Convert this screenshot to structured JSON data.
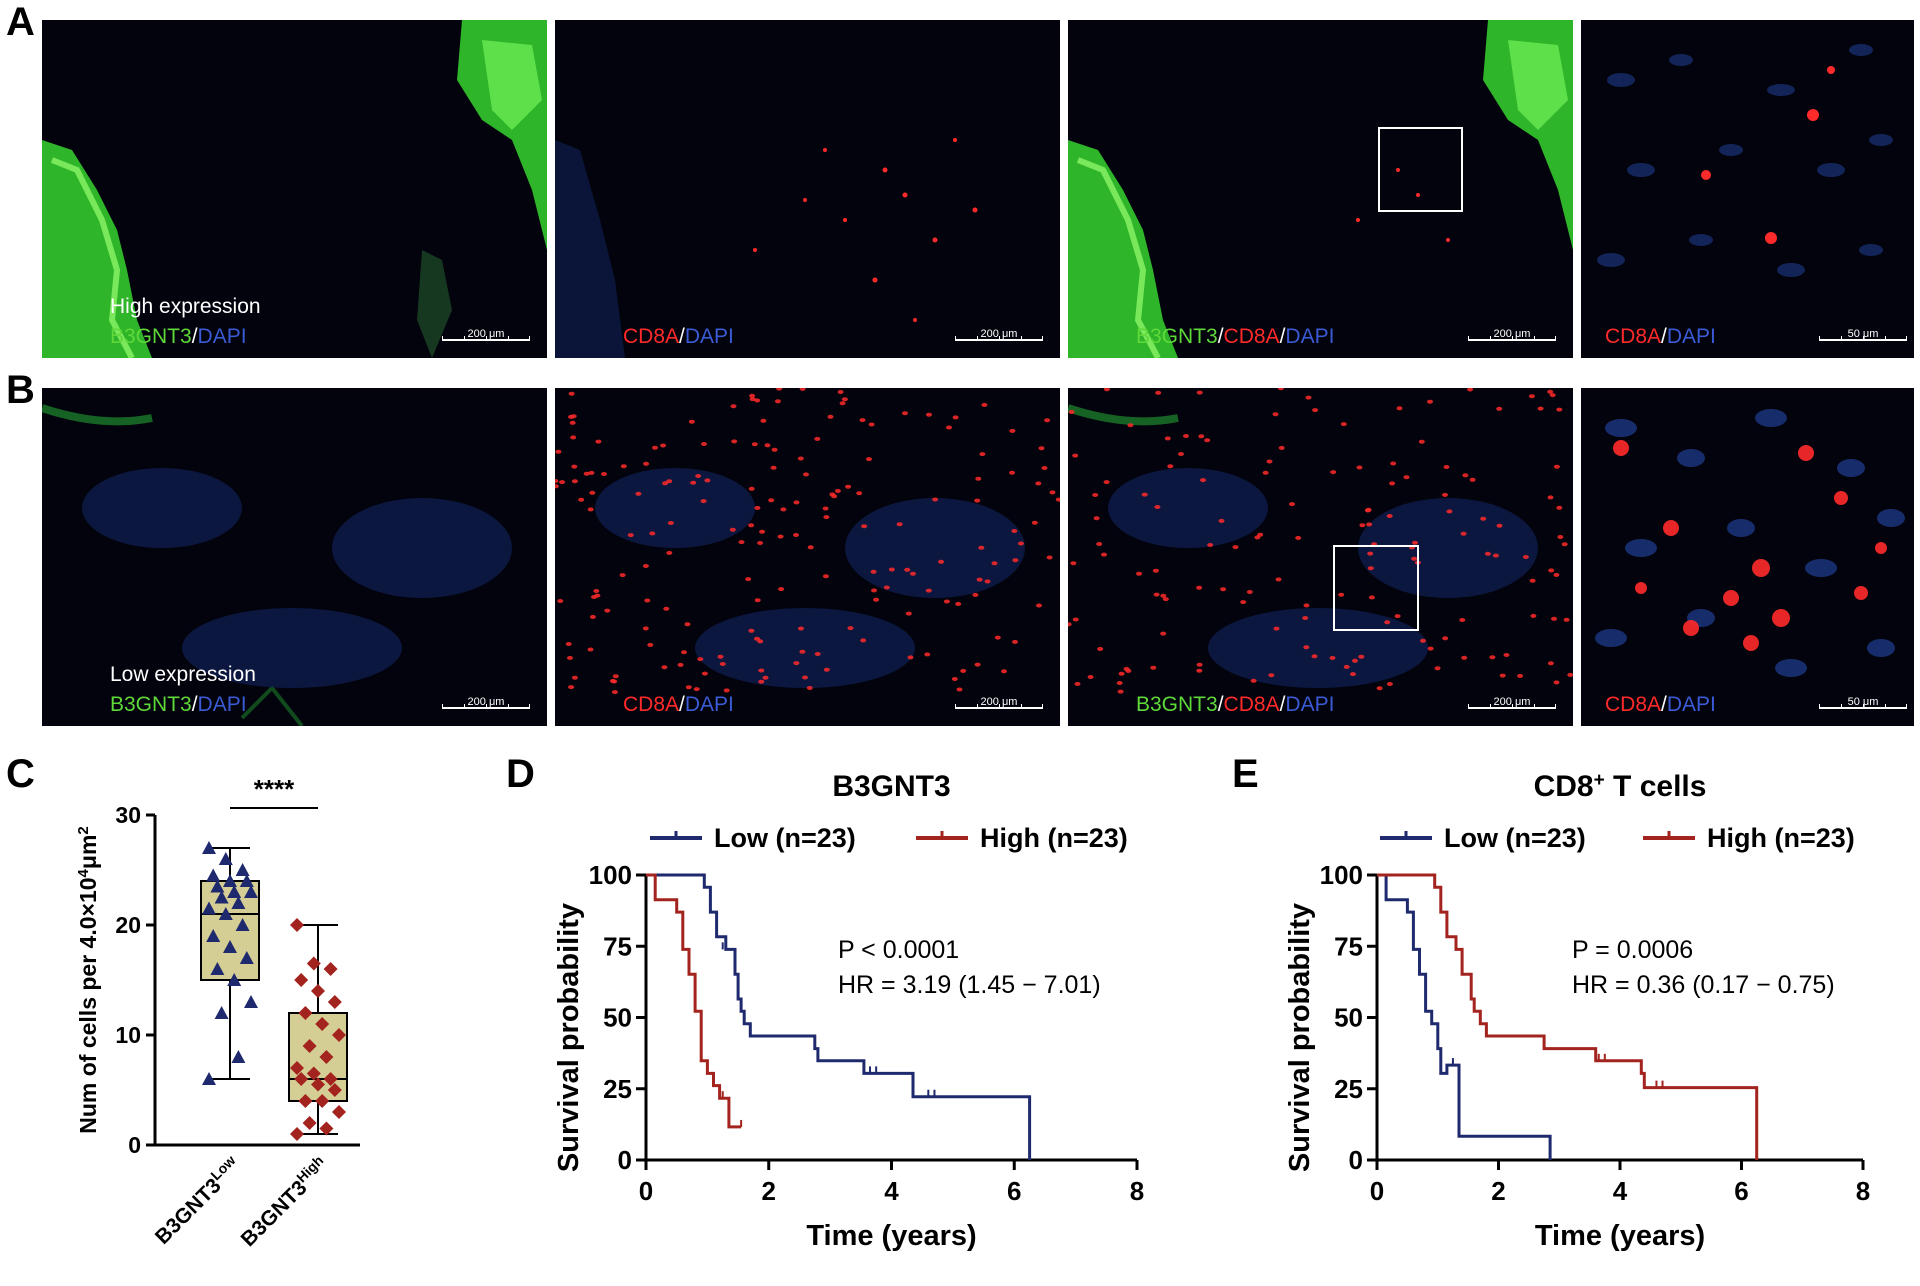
{
  "panel_labels": {
    "a": "A",
    "b": "B",
    "c": "C",
    "d": "D",
    "e": "E"
  },
  "row_a": {
    "expression_label": "High expression",
    "tiles": [
      {
        "parts": [
          {
            "text": "B3GNT3",
            "color": "#5fd83a"
          },
          {
            "text": "/",
            "color": "#ffffff"
          },
          {
            "text": "DAPI",
            "color": "#3b5bd6"
          }
        ],
        "scale": "200 μm"
      },
      {
        "parts": [
          {
            "text": "CD8A",
            "color": "#ff2a2a"
          },
          {
            "text": "/",
            "color": "#ffffff"
          },
          {
            "text": "DAPI",
            "color": "#3b5bd6"
          }
        ],
        "scale": "200 μm"
      },
      {
        "parts": [
          {
            "text": "B3GNT3",
            "color": "#5fd83a"
          },
          {
            "text": "/",
            "color": "#ffffff"
          },
          {
            "text": "CD8A",
            "color": "#ff2a2a"
          },
          {
            "text": "/",
            "color": "#ffffff"
          },
          {
            "text": "DAPI",
            "color": "#3b5bd6"
          }
        ],
        "scale": "200 μm"
      },
      {
        "parts": [
          {
            "text": "CD8A",
            "color": "#ff2a2a"
          },
          {
            "text": "/",
            "color": "#ffffff"
          },
          {
            "text": "DAPI",
            "color": "#3b5bd6"
          }
        ],
        "scale": "50 μm"
      }
    ]
  },
  "row_b": {
    "expression_label": "Low expression",
    "tiles": [
      {
        "parts": [
          {
            "text": "B3GNT3",
            "color": "#5fd83a"
          },
          {
            "text": "/",
            "color": "#ffffff"
          },
          {
            "text": "DAPI",
            "color": "#3b5bd6"
          }
        ],
        "scale": "200 μm"
      },
      {
        "parts": [
          {
            "text": "CD8A",
            "color": "#ff2a2a"
          },
          {
            "text": "/",
            "color": "#ffffff"
          },
          {
            "text": "DAPI",
            "color": "#3b5bd6"
          }
        ],
        "scale": "200 μm"
      },
      {
        "parts": [
          {
            "text": "B3GNT3",
            "color": "#5fd83a"
          },
          {
            "text": "/",
            "color": "#ffffff"
          },
          {
            "text": "CD8A",
            "color": "#ff2a2a"
          },
          {
            "text": "/",
            "color": "#ffffff"
          },
          {
            "text": "DAPI",
            "color": "#3b5bd6"
          }
        ],
        "scale": "200 μm"
      },
      {
        "parts": [
          {
            "text": "CD8A",
            "color": "#ff2a2a"
          },
          {
            "text": "/",
            "color": "#ffffff"
          },
          {
            "text": "DAPI",
            "color": "#3b5bd6"
          }
        ],
        "scale": "50 μm"
      }
    ]
  },
  "colors": {
    "low": "#1f2a6e",
    "high": "#a3231f",
    "box_fill": "#d4ce94",
    "tissue": "#02030c"
  },
  "chart_data": [
    {
      "type": "box",
      "ylabel_prefix": "Num of cells per 4.0×10",
      "ylabel_exp": "4",
      "ylabel_unit": "μm",
      "ylabel_unit_exp": "2",
      "ylim": [
        0,
        30
      ],
      "yticks": [
        0,
        10,
        20,
        30
      ],
      "significance": "****",
      "groups": [
        {
          "label_base": "B3GNT3",
          "label_sup": "Low",
          "min": 6,
          "q1": 15,
          "median": 21,
          "q3": 24,
          "max": 27,
          "points": [
            27,
            26,
            25,
            24.5,
            24,
            24,
            23.5,
            23,
            23,
            22.5,
            22,
            21.5,
            21,
            20,
            19,
            18,
            17,
            16,
            15,
            13,
            12,
            8,
            6
          ]
        },
        {
          "label_base": "B3GNT3",
          "label_sup": "High",
          "min": 1,
          "q1": 4,
          "median": 6,
          "q3": 12,
          "max": 20,
          "points": [
            20,
            16.5,
            16,
            15,
            14,
            13,
            12,
            11,
            10,
            9,
            8,
            7,
            6.5,
            6,
            6,
            5.5,
            5,
            4,
            4,
            3,
            2,
            1.5,
            1
          ]
        }
      ]
    },
    {
      "type": "line",
      "title": "B3GNT3",
      "xlabel": "Time (years)",
      "ylabel": "Survival probability",
      "xlim": [
        0,
        8
      ],
      "ylim": [
        0,
        100
      ],
      "xticks": [
        0,
        2,
        4,
        6,
        8
      ],
      "yticks": [
        0,
        25,
        50,
        75,
        100
      ],
      "annotation": [
        "P < 0.0001",
        "HR = 3.19 (1.45 − 7.01)"
      ],
      "series": [
        {
          "name": "Low (n=23)",
          "color": "#1f2a6e",
          "steps": [
            [
              0,
              100
            ],
            [
              0.95,
              100
            ],
            [
              0.95,
              95.7
            ],
            [
              1.05,
              95.7
            ],
            [
              1.05,
              87
            ],
            [
              1.15,
              87
            ],
            [
              1.15,
              78.3
            ],
            [
              1.3,
              78.3
            ],
            [
              1.3,
              73.9
            ],
            [
              1.45,
              73.9
            ],
            [
              1.45,
              65.2
            ],
            [
              1.5,
              65.2
            ],
            [
              1.5,
              56.5
            ],
            [
              1.55,
              56.5
            ],
            [
              1.55,
              52.2
            ],
            [
              1.6,
              52.2
            ],
            [
              1.6,
              47.8
            ],
            [
              1.7,
              47.8
            ],
            [
              1.7,
              43.5
            ],
            [
              2.75,
              43.5
            ],
            [
              2.75,
              39.1
            ],
            [
              2.8,
              39.1
            ],
            [
              2.8,
              34.8
            ],
            [
              3.55,
              34.8
            ],
            [
              3.55,
              30.4
            ],
            [
              4.35,
              30.4
            ],
            [
              4.35,
              22.2
            ],
            [
              6.25,
              22.2
            ],
            [
              6.25,
              0
            ]
          ],
          "censors": [
            [
              1.25,
              73.9
            ],
            [
              3.65,
              30.4
            ],
            [
              3.75,
              30.4
            ],
            [
              4.6,
              22.2
            ],
            [
              4.7,
              22.2
            ]
          ]
        },
        {
          "name": "High (n=23)",
          "color": "#a3231f",
          "steps": [
            [
              0,
              100
            ],
            [
              0.15,
              100
            ],
            [
              0.15,
              91.3
            ],
            [
              0.5,
              91.3
            ],
            [
              0.5,
              87
            ],
            [
              0.6,
              87
            ],
            [
              0.6,
              73.9
            ],
            [
              0.7,
              73.9
            ],
            [
              0.7,
              65.2
            ],
            [
              0.8,
              65.2
            ],
            [
              0.8,
              52.2
            ],
            [
              0.9,
              52.2
            ],
            [
              0.9,
              34.8
            ],
            [
              1.0,
              34.8
            ],
            [
              1.0,
              30.4
            ],
            [
              1.1,
              30.4
            ],
            [
              1.1,
              26.1
            ],
            [
              1.2,
              26.1
            ],
            [
              1.2,
              21.7
            ],
            [
              1.35,
              21.7
            ],
            [
              1.35,
              11.6
            ],
            [
              1.55,
              11.6
            ]
          ],
          "censors": [
            [
              1.25,
              21.7
            ],
            [
              1.55,
              11.6
            ]
          ]
        }
      ]
    },
    {
      "type": "line",
      "title_base": "CD8",
      "title_sup": "+",
      "title_rest": " T cells",
      "xlabel": "Time (years)",
      "ylabel": "Survival probability",
      "xlim": [
        0,
        8
      ],
      "ylim": [
        0,
        100
      ],
      "xticks": [
        0,
        2,
        4,
        6,
        8
      ],
      "yticks": [
        0,
        25,
        50,
        75,
        100
      ],
      "annotation": [
        "P = 0.0006",
        "HR = 0.36 (0.17 − 0.75)"
      ],
      "series": [
        {
          "name": "Low (n=23)",
          "color": "#1f2a6e",
          "steps": [
            [
              0,
              100
            ],
            [
              0.15,
              100
            ],
            [
              0.15,
              91.3
            ],
            [
              0.5,
              91.3
            ],
            [
              0.5,
              87
            ],
            [
              0.6,
              87
            ],
            [
              0.6,
              73.9
            ],
            [
              0.7,
              73.9
            ],
            [
              0.7,
              65.2
            ],
            [
              0.8,
              65.2
            ],
            [
              0.8,
              52.2
            ],
            [
              0.9,
              52.2
            ],
            [
              0.9,
              47.8
            ],
            [
              1.0,
              47.8
            ],
            [
              1.0,
              39.1
            ],
            [
              1.05,
              39.1
            ],
            [
              1.05,
              30.4
            ],
            [
              1.15,
              30.4
            ],
            [
              1.15,
              33.3
            ],
            [
              1.35,
              33.3
            ],
            [
              1.35,
              8.3
            ],
            [
              2.85,
              8.3
            ],
            [
              2.85,
              0
            ]
          ],
          "censors": [
            [
              1.25,
              33.3
            ]
          ]
        },
        {
          "name": "High (n=23)",
          "color": "#a3231f",
          "steps": [
            [
              0,
              100
            ],
            [
              0.95,
              100
            ],
            [
              0.95,
              95.7
            ],
            [
              1.05,
              95.7
            ],
            [
              1.05,
              87
            ],
            [
              1.15,
              87
            ],
            [
              1.15,
              78.3
            ],
            [
              1.3,
              78.3
            ],
            [
              1.3,
              73.9
            ],
            [
              1.4,
              73.9
            ],
            [
              1.4,
              65.2
            ],
            [
              1.55,
              65.2
            ],
            [
              1.55,
              56.5
            ],
            [
              1.6,
              56.5
            ],
            [
              1.6,
              52.2
            ],
            [
              1.7,
              52.2
            ],
            [
              1.7,
              47.8
            ],
            [
              1.8,
              47.8
            ],
            [
              1.8,
              43.5
            ],
            [
              2.75,
              43.5
            ],
            [
              2.75,
              39.1
            ],
            [
              3.6,
              39.1
            ],
            [
              3.6,
              34.8
            ],
            [
              4.35,
              34.8
            ],
            [
              4.35,
              30.4
            ],
            [
              4.4,
              30.4
            ],
            [
              4.4,
              25.4
            ],
            [
              6.25,
              25.4
            ],
            [
              6.25,
              0
            ]
          ],
          "censors": [
            [
              3.65,
              34.8
            ],
            [
              3.75,
              34.8
            ],
            [
              4.6,
              25.4
            ],
            [
              4.7,
              25.4
            ]
          ]
        }
      ]
    }
  ]
}
